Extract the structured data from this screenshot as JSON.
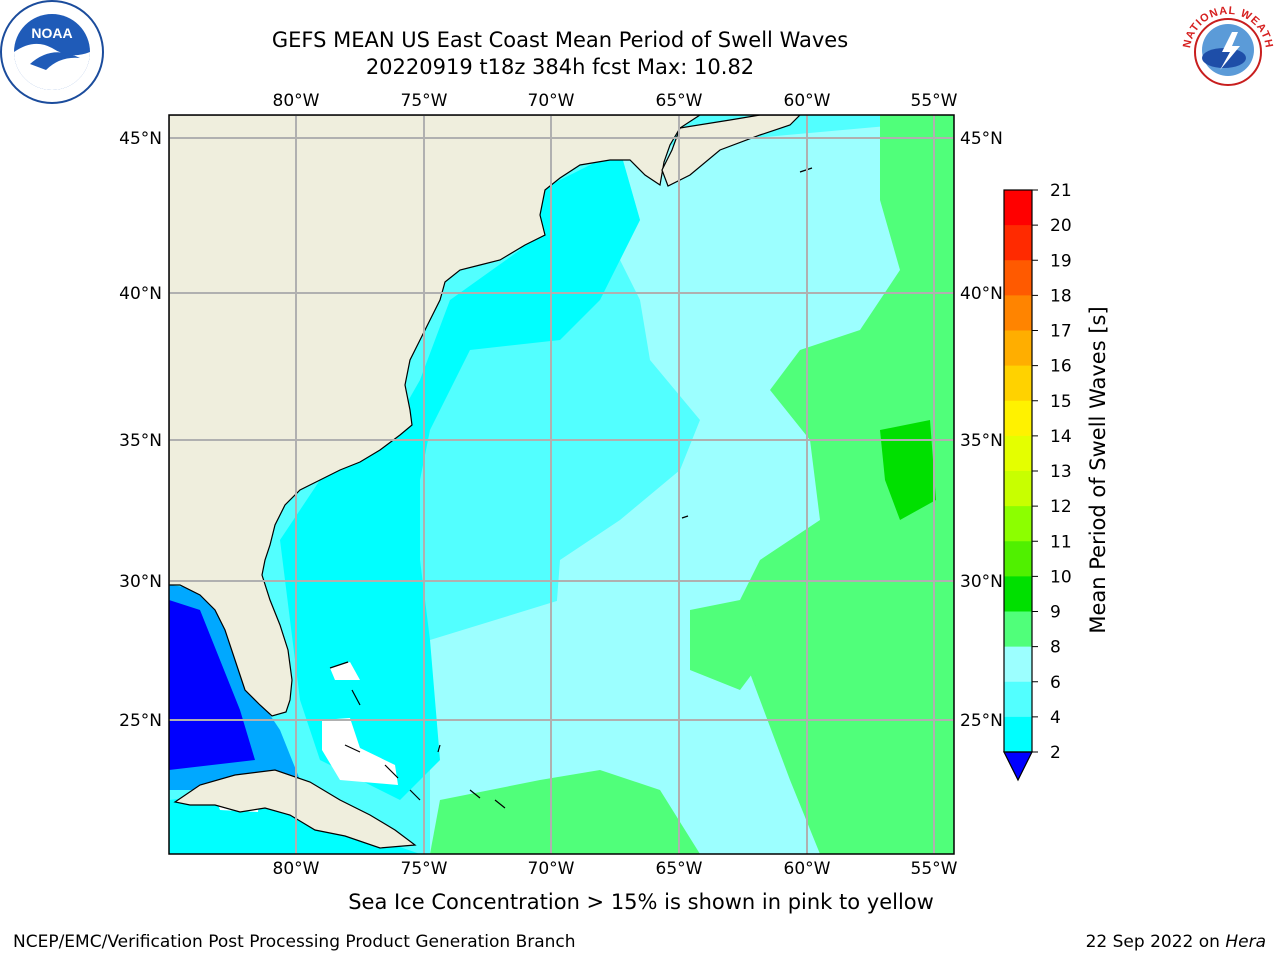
{
  "title": {
    "line1": "GEFS MEAN US East Coast Mean Period of Swell Waves",
    "line2": "20220919 t18z 384h fcst   Max: 10.82"
  },
  "map": {
    "lon_ticks": [
      "80°W",
      "75°W",
      "70°W",
      "65°W",
      "60°W",
      "55°W"
    ],
    "lat_ticks": [
      "45°N",
      "40°N",
      "35°N",
      "30°N",
      "25°N"
    ],
    "colors": {
      "land": "#efeedd",
      "grid": "#b0b0b0",
      "coast": "#000000"
    }
  },
  "colorbar": {
    "label": "Mean Period of Swell Waves [s]",
    "ticks": [
      "21",
      "20",
      "19",
      "18",
      "17",
      "16",
      "15",
      "14",
      "13",
      "12",
      "11",
      "10",
      "9",
      "8",
      "6",
      "4",
      "2"
    ],
    "colors": [
      "#ff0000",
      "#ff2a00",
      "#ff5a00",
      "#ff8400",
      "#ffae00",
      "#ffd200",
      "#fff200",
      "#e4ff00",
      "#c8ff00",
      "#8cff00",
      "#50f000",
      "#00e000",
      "#50ff7a",
      "#9cffff",
      "#52ffff",
      "#00ffff",
      "#00a8ff",
      "#0000ff"
    ]
  },
  "note": "Sea Ice Concentration > 15% is shown in pink to yellow",
  "footer": {
    "left": "NCEP/EMC/Verification Post Processing Product Generation Branch",
    "right_date": "22 Sep 2022 on",
    "right_host": "Hera"
  },
  "logos": {
    "left": "NOAA",
    "right": "NATIONAL WEATHER SERVICE"
  }
}
